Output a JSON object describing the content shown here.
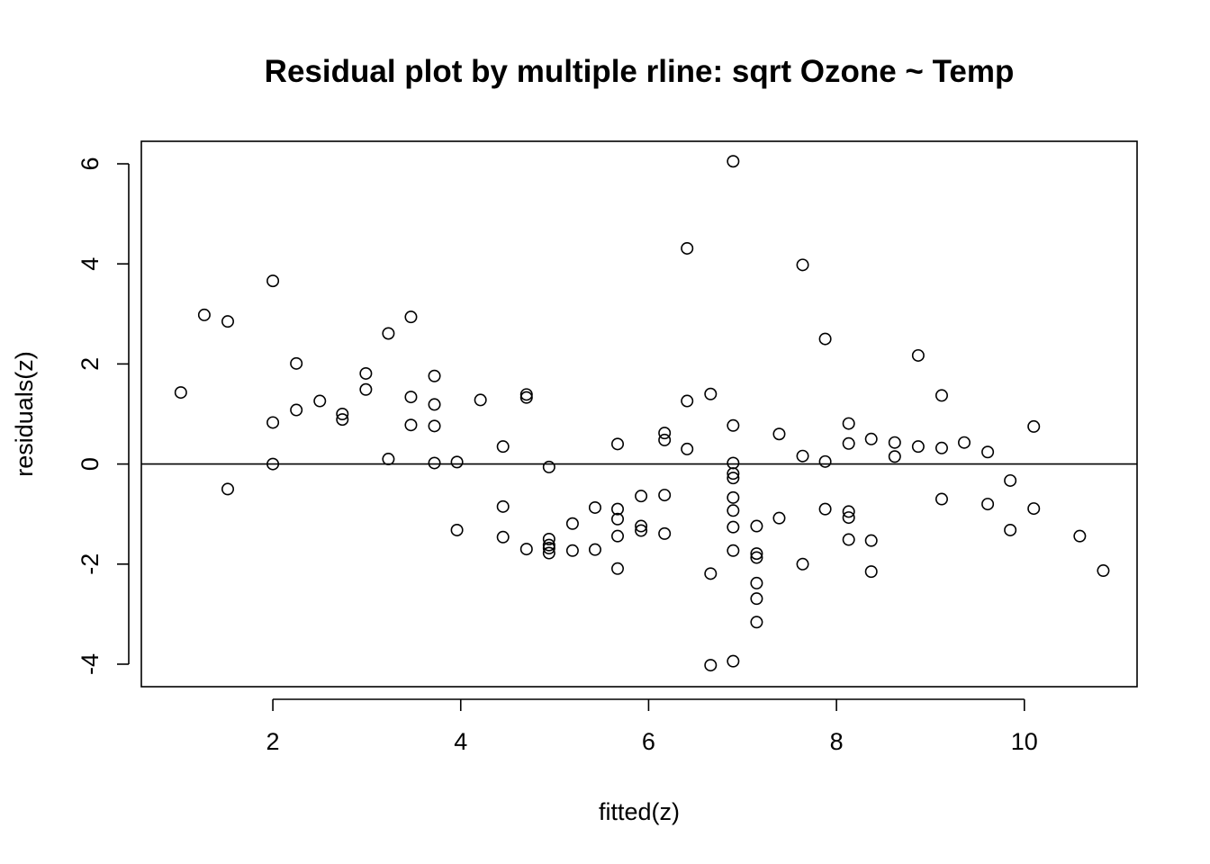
{
  "chart_data": {
    "type": "scatter",
    "title": "Residual plot by multiple rline: sqrt Ozone ~ Temp",
    "xlabel": "fitted(z)",
    "ylabel": "residuals(z)",
    "xlim": [
      0.6,
      11.2
    ],
    "ylim": [
      -4.45,
      6.45
    ],
    "xticks": [
      2,
      4,
      6,
      8,
      10
    ],
    "yticks": [
      -4,
      -2,
      0,
      2,
      4,
      6
    ],
    "xtick_labels": [
      "2",
      "4",
      "6",
      "8",
      "10"
    ],
    "ytick_labels": [
      "-4",
      "-2",
      "0",
      "2",
      "4",
      "6"
    ],
    "reference_line_y": 0,
    "grid": false,
    "marker": "open-circle",
    "points": [
      [
        1.02,
        1.43
      ],
      [
        1.27,
        2.98
      ],
      [
        1.52,
        2.85
      ],
      [
        1.52,
        -0.5
      ],
      [
        2.0,
        3.66
      ],
      [
        2.0,
        0.83
      ],
      [
        2.0,
        0.0
      ],
      [
        2.25,
        2.01
      ],
      [
        2.25,
        1.08
      ],
      [
        2.5,
        1.26
      ],
      [
        2.74,
        1.0
      ],
      [
        2.74,
        0.89
      ],
      [
        2.99,
        1.81
      ],
      [
        2.99,
        1.49
      ],
      [
        3.23,
        2.61
      ],
      [
        3.23,
        0.1
      ],
      [
        3.47,
        2.94
      ],
      [
        3.47,
        1.34
      ],
      [
        3.47,
        0.78
      ],
      [
        3.72,
        1.76
      ],
      [
        3.72,
        1.19
      ],
      [
        3.72,
        0.76
      ],
      [
        3.72,
        0.02
      ],
      [
        3.96,
        0.04
      ],
      [
        3.96,
        -1.32
      ],
      [
        4.21,
        1.28
      ],
      [
        4.45,
        0.35
      ],
      [
        4.45,
        -0.85
      ],
      [
        4.45,
        -1.46
      ],
      [
        4.7,
        1.39
      ],
      [
        4.7,
        1.33
      ],
      [
        4.7,
        -1.7
      ],
      [
        4.94,
        -0.06
      ],
      [
        4.94,
        -1.5
      ],
      [
        4.94,
        -1.62
      ],
      [
        4.94,
        -1.68
      ],
      [
        4.94,
        -1.78
      ],
      [
        5.19,
        -1.19
      ],
      [
        5.19,
        -1.73
      ],
      [
        5.43,
        -0.87
      ],
      [
        5.43,
        -1.71
      ],
      [
        5.67,
        0.4
      ],
      [
        5.67,
        -0.9
      ],
      [
        5.67,
        -1.1
      ],
      [
        5.67,
        -1.44
      ],
      [
        5.67,
        -2.09
      ],
      [
        5.92,
        -0.64
      ],
      [
        5.92,
        -1.24
      ],
      [
        5.92,
        -1.33
      ],
      [
        6.17,
        0.62
      ],
      [
        6.17,
        0.48
      ],
      [
        6.17,
        -0.62
      ],
      [
        6.17,
        -1.39
      ],
      [
        6.41,
        4.31
      ],
      [
        6.41,
        1.26
      ],
      [
        6.41,
        0.3
      ],
      [
        6.66,
        1.4
      ],
      [
        6.66,
        -2.19
      ],
      [
        6.66,
        -4.02
      ],
      [
        6.9,
        6.05
      ],
      [
        6.9,
        0.77
      ],
      [
        6.9,
        0.02
      ],
      [
        6.9,
        -0.19
      ],
      [
        6.9,
        -0.28
      ],
      [
        6.9,
        -0.67
      ],
      [
        6.9,
        -0.93
      ],
      [
        6.9,
        -1.26
      ],
      [
        6.9,
        -1.73
      ],
      [
        6.9,
        -3.94
      ],
      [
        7.15,
        -1.24
      ],
      [
        7.15,
        -1.79
      ],
      [
        7.15,
        -1.87
      ],
      [
        7.15,
        -2.38
      ],
      [
        7.15,
        -2.69
      ],
      [
        7.15,
        -3.16
      ],
      [
        7.39,
        0.6
      ],
      [
        7.39,
        -1.08
      ],
      [
        7.64,
        3.98
      ],
      [
        7.64,
        0.16
      ],
      [
        7.64,
        -2.0
      ],
      [
        7.88,
        2.5
      ],
      [
        7.88,
        0.05
      ],
      [
        7.88,
        -0.9
      ],
      [
        8.13,
        0.81
      ],
      [
        8.13,
        0.41
      ],
      [
        8.13,
        -0.95
      ],
      [
        8.13,
        -1.07
      ],
      [
        8.13,
        -1.51
      ],
      [
        8.37,
        0.5
      ],
      [
        8.37,
        -1.53
      ],
      [
        8.37,
        -2.15
      ],
      [
        8.62,
        0.43
      ],
      [
        8.62,
        0.15
      ],
      [
        8.87,
        2.17
      ],
      [
        8.87,
        0.35
      ],
      [
        9.12,
        1.37
      ],
      [
        9.12,
        0.32
      ],
      [
        9.12,
        -0.7
      ],
      [
        9.36,
        0.43
      ],
      [
        9.61,
        0.24
      ],
      [
        9.61,
        -0.8
      ],
      [
        9.85,
        -0.33
      ],
      [
        9.85,
        -1.32
      ],
      [
        10.1,
        0.75
      ],
      [
        10.1,
        -0.89
      ],
      [
        10.59,
        -1.44
      ],
      [
        10.84,
        -2.13
      ]
    ]
  }
}
